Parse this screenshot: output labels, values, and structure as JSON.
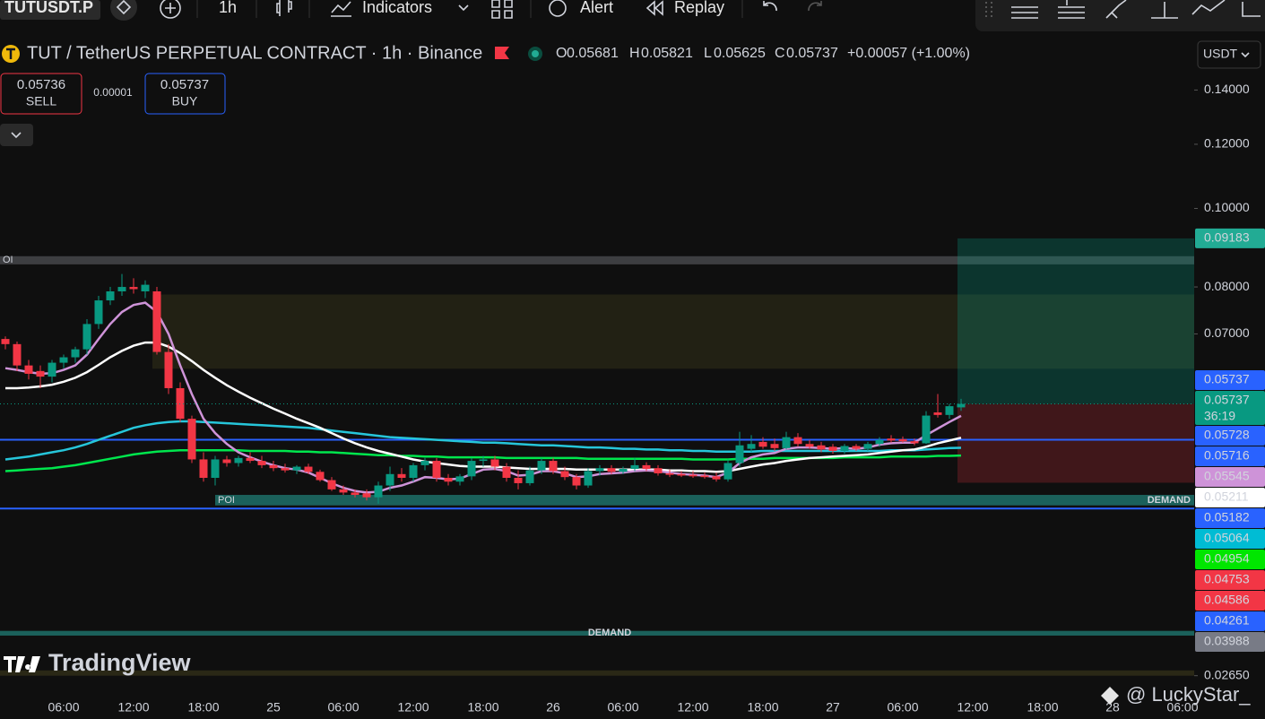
{
  "toolbar": {
    "symbol": "TUTUSDT.P",
    "interval": "1h",
    "indicators": "Indicators",
    "alert": "Alert",
    "replay": "Replay"
  },
  "header": {
    "title": "TUT / TetherUS PERPETUAL CONTRACT · 1h · Binance",
    "ohlc": [
      {
        "key": "O",
        "value": "0.05681"
      },
      {
        "key": "H",
        "value": "0.05821"
      },
      {
        "key": "L",
        "value": "0.05625"
      },
      {
        "key": "C",
        "value": "0.05737"
      }
    ],
    "change": "+0.00057 (+1.00%)"
  },
  "trade": {
    "sell_price": "0.05736",
    "sell": "SELL",
    "spread": "0.00001",
    "buy_price": "0.05737",
    "buy": "BUY"
  },
  "currency": "USDT",
  "watermark": "TradingView",
  "credit": "@ LuckyStar_",
  "chart_data": {
    "type": "candlestick",
    "log_scale": true,
    "grid": false,
    "ylim": [
      0.0251,
      0.1633
    ],
    "yticks": [
      {
        "value": 0.14,
        "label": "0.14000"
      },
      {
        "value": 0.12,
        "label": "0.12000"
      },
      {
        "value": 0.1,
        "label": "0.10000"
      },
      {
        "value": 0.08,
        "label": "0.08000"
      },
      {
        "value": 0.07,
        "label": "0.07000"
      },
      {
        "value": 0.0265,
        "label": "0.02650"
      }
    ],
    "up_color": "#089981",
    "down_color": "#f23645",
    "categories": [
      null,
      null,
      null,
      null,
      null,
      "06:00",
      null,
      null,
      null,
      null,
      null,
      "12:00",
      null,
      null,
      null,
      null,
      null,
      "18:00",
      null,
      null,
      null,
      null,
      null,
      "25",
      null,
      null,
      null,
      null,
      null,
      "06:00",
      null,
      null,
      null,
      null,
      null,
      "12:00",
      null,
      null,
      null,
      null,
      null,
      "18:00",
      null,
      null,
      null,
      null,
      null,
      "26",
      null,
      null,
      null,
      null,
      null,
      "06:00",
      null,
      null,
      null,
      null,
      null,
      "12:00",
      null,
      null,
      null,
      null,
      null,
      "18:00",
      null,
      null,
      null,
      null,
      null,
      "27",
      null,
      null,
      null,
      null,
      null,
      "06:00",
      null,
      null,
      null,
      null,
      null,
      "12:00",
      null,
      null,
      null,
      null,
      null,
      "18:00",
      null,
      null,
      null,
      null,
      null,
      "28",
      null,
      null,
      null,
      null,
      null,
      "06:00"
    ],
    "open": [
      0.069,
      0.068,
      0.064,
      0.063,
      0.062,
      0.0645,
      0.0655,
      0.067,
      0.072,
      0.077,
      0.079,
      0.08,
      0.079,
      0.079,
      0.0665,
      0.06,
      0.055,
      0.049,
      0.0465,
      0.049,
      0.0485,
      0.0492,
      0.0488,
      0.0482,
      0.0478,
      0.0475,
      0.048,
      0.0473,
      0.0462,
      0.045,
      0.0446,
      0.0445,
      0.044,
      0.0455,
      0.047,
      0.0465,
      0.0482,
      0.0488,
      0.0465,
      0.046,
      0.0467,
      0.0488,
      0.049,
      0.048,
      0.0465,
      0.0458,
      0.0475,
      0.0488,
      0.0474,
      0.0466,
      0.0455,
      0.0474,
      0.0478,
      0.0473,
      0.0477,
      0.0482,
      0.0478,
      0.0471,
      0.047,
      0.0469,
      0.0468,
      0.0467,
      0.0463,
      0.0485,
      0.0505,
      0.0515,
      0.0512,
      0.0506,
      0.0522,
      0.0512,
      0.051,
      0.0508,
      0.0502,
      0.0509,
      0.0505,
      0.0512,
      0.052,
      0.0519,
      0.0516,
      0.0513,
      0.056,
      0.0556,
      0.05681,
      null,
      null,
      null,
      null,
      null,
      null,
      null,
      null,
      null,
      null,
      null,
      null,
      null,
      null,
      null,
      null,
      null,
      null,
      null
    ],
    "high": [
      0.0695,
      0.0685,
      0.065,
      0.064,
      0.065,
      0.066,
      0.0675,
      0.073,
      0.078,
      0.08,
      0.083,
      0.082,
      0.0815,
      0.08,
      0.068,
      0.061,
      0.0555,
      0.05,
      0.0495,
      0.0495,
      0.0495,
      0.05,
      0.0495,
      0.0488,
      0.0484,
      0.0482,
      0.0484,
      0.0476,
      0.0466,
      0.0455,
      0.045,
      0.045,
      0.046,
      0.048,
      0.0478,
      0.0485,
      0.0492,
      0.0492,
      0.047,
      0.047,
      0.0492,
      0.0495,
      0.0495,
      0.0485,
      0.0475,
      0.048,
      0.0492,
      0.0492,
      0.048,
      0.047,
      0.0478,
      0.0482,
      0.0482,
      0.048,
      0.0492,
      0.0486,
      0.0482,
      0.0476,
      0.0474,
      0.0474,
      0.0472,
      0.0472,
      0.049,
      0.053,
      0.0525,
      0.0522,
      0.052,
      0.053,
      0.0528,
      0.0518,
      0.0515,
      0.0512,
      0.0512,
      0.0512,
      0.0515,
      0.0522,
      0.0525,
      0.0523,
      0.052,
      0.0562,
      0.059,
      0.0574,
      0.05821,
      null,
      null,
      null,
      null,
      null,
      null,
      null,
      null,
      null,
      null,
      null,
      null,
      null,
      null,
      null,
      null,
      null,
      null,
      null
    ],
    "low": [
      0.067,
      0.063,
      0.0615,
      0.06,
      0.061,
      0.0635,
      0.0645,
      0.066,
      0.071,
      0.076,
      0.078,
      0.0785,
      0.0775,
      0.066,
      0.059,
      0.0545,
      0.0485,
      0.046,
      0.0455,
      0.048,
      0.048,
      0.0485,
      0.0478,
      0.0474,
      0.0472,
      0.047,
      0.047,
      0.046,
      0.0448,
      0.0443,
      0.044,
      0.0436,
      0.0432,
      0.0448,
      0.046,
      0.046,
      0.0475,
      0.046,
      0.0455,
      0.0455,
      0.0462,
      0.048,
      0.0475,
      0.046,
      0.045,
      0.0455,
      0.047,
      0.047,
      0.0462,
      0.045,
      0.0452,
      0.0468,
      0.047,
      0.047,
      0.0474,
      0.0474,
      0.0468,
      0.0466,
      0.0466,
      0.0465,
      0.0464,
      0.046,
      0.046,
      0.048,
      0.05,
      0.0505,
      0.0502,
      0.0504,
      0.0508,
      0.0505,
      0.05,
      0.0498,
      0.0498,
      0.0502,
      0.0502,
      0.0508,
      0.0514,
      0.0514,
      0.051,
      0.0512,
      0.0552,
      0.055,
      0.05625,
      null,
      null,
      null,
      null,
      null,
      null,
      null,
      null,
      null,
      null,
      null,
      null,
      null,
      null,
      null,
      null,
      null,
      null,
      null
    ],
    "close": [
      0.068,
      0.064,
      0.0625,
      0.062,
      0.0645,
      0.0655,
      0.067,
      0.072,
      0.077,
      0.079,
      0.08,
      0.0795,
      0.0805,
      0.0665,
      0.06,
      0.055,
      0.049,
      0.0465,
      0.049,
      0.0485,
      0.0492,
      0.0488,
      0.0482,
      0.0478,
      0.0475,
      0.048,
      0.0473,
      0.0462,
      0.045,
      0.0446,
      0.0443,
      0.044,
      0.0455,
      0.047,
      0.0465,
      0.0482,
      0.0488,
      0.0465,
      0.046,
      0.0467,
      0.0488,
      0.049,
      0.048,
      0.0465,
      0.0458,
      0.0475,
      0.0488,
      0.0474,
      0.0466,
      0.0455,
      0.0474,
      0.0478,
      0.0473,
      0.0477,
      0.0482,
      0.0477,
      0.0471,
      0.0469,
      0.0468,
      0.0467,
      0.0466,
      0.0463,
      0.0485,
      0.051,
      0.0512,
      0.0508,
      0.0506,
      0.0522,
      0.0512,
      0.0508,
      0.0504,
      0.0502,
      0.0509,
      0.0505,
      0.0512,
      0.0518,
      0.0517,
      0.0516,
      0.0513,
      0.0555,
      0.0556,
      0.057,
      0.05737,
      null,
      null,
      null,
      null,
      null,
      null,
      null,
      null,
      null,
      null,
      null,
      null,
      null,
      null,
      null,
      null,
      null,
      null,
      null
    ],
    "series": [
      {
        "color": "#00e64d",
        "values": [
          0.0474,
          0.0475,
          0.0476,
          0.0477,
          0.0478,
          0.048,
          0.0482,
          0.0485,
          0.0488,
          0.0491,
          0.0494,
          0.0497,
          0.0499,
          0.0501,
          0.0502,
          0.0503,
          0.0503,
          0.0503,
          0.0503,
          0.0503,
          0.0503,
          0.0502,
          0.0502,
          0.0502,
          0.0502,
          0.0501,
          0.0501,
          0.05,
          0.05,
          0.0499,
          0.0498,
          0.0497,
          0.0496,
          0.0496,
          0.0495,
          0.0495,
          0.0494,
          0.0494,
          0.0493,
          0.0493,
          0.0493,
          0.0493,
          0.0493,
          0.0492,
          0.0492,
          0.0492,
          0.0492,
          0.0492,
          0.0492,
          0.0492,
          0.0491,
          0.0491,
          0.0491,
          0.0491,
          0.0491,
          0.0491,
          0.0491,
          0.0491,
          0.0491,
          0.049,
          0.049,
          0.049,
          0.049,
          0.0491,
          0.0491,
          0.0491,
          0.0492,
          0.0492,
          0.0492,
          0.0492,
          0.0492,
          0.0492,
          0.0493,
          0.0493,
          0.0493,
          0.0493,
          0.0494,
          0.0494,
          0.0494,
          0.0494,
          0.0495,
          0.0495,
          0.04954,
          null,
          null,
          null,
          null,
          null,
          null,
          null,
          null,
          null,
          null,
          null,
          null,
          null,
          null,
          null,
          null,
          null,
          null,
          null
        ]
      },
      {
        "color": "#26c6da",
        "values": [
          0.049,
          0.0492,
          0.0494,
          0.0497,
          0.05,
          0.0503,
          0.0507,
          0.0512,
          0.0518,
          0.0524,
          0.053,
          0.0536,
          0.054,
          0.0543,
          0.0545,
          0.0546,
          0.0546,
          0.0545,
          0.0544,
          0.0543,
          0.0542,
          0.0541,
          0.054,
          0.0539,
          0.0538,
          0.0537,
          0.0536,
          0.0534,
          0.0532,
          0.053,
          0.0528,
          0.0526,
          0.0524,
          0.0522,
          0.0521,
          0.052,
          0.0519,
          0.0518,
          0.0517,
          0.0516,
          0.0515,
          0.0514,
          0.0514,
          0.0513,
          0.0512,
          0.0511,
          0.051,
          0.051,
          0.0509,
          0.0508,
          0.0507,
          0.0507,
          0.0506,
          0.0505,
          0.0505,
          0.0504,
          0.0504,
          0.0503,
          0.0503,
          0.0502,
          0.0502,
          0.0501,
          0.0501,
          0.0501,
          0.0501,
          0.0502,
          0.0502,
          0.0502,
          0.0502,
          0.0502,
          0.0502,
          0.0502,
          0.0502,
          0.0502,
          0.0502,
          0.0502,
          0.0503,
          0.0503,
          0.0503,
          0.0504,
          0.0505,
          0.0506,
          0.05064,
          null,
          null,
          null,
          null,
          null,
          null,
          null,
          null,
          null,
          null,
          null,
          null,
          null,
          null,
          null,
          null,
          null,
          null,
          null
        ]
      },
      {
        "color": "#ffffff",
        "values": [
          0.06,
          0.06,
          0.0601,
          0.0603,
          0.0606,
          0.0611,
          0.0618,
          0.0628,
          0.0641,
          0.0655,
          0.0667,
          0.0677,
          0.0683,
          0.0683,
          0.0675,
          0.0663,
          0.0648,
          0.0632,
          0.0618,
          0.0605,
          0.0594,
          0.0584,
          0.0575,
          0.0566,
          0.0558,
          0.055,
          0.0543,
          0.0536,
          0.0528,
          0.052,
          0.0513,
          0.0507,
          0.0502,
          0.0498,
          0.0494,
          0.049,
          0.0487,
          0.0485,
          0.0483,
          0.0481,
          0.048,
          0.048,
          0.048,
          0.0479,
          0.0478,
          0.0477,
          0.0477,
          0.0477,
          0.0477,
          0.0476,
          0.0476,
          0.0476,
          0.0476,
          0.0476,
          0.0476,
          0.0476,
          0.0476,
          0.0475,
          0.0475,
          0.0474,
          0.0474,
          0.0473,
          0.0474,
          0.0477,
          0.048,
          0.0483,
          0.0485,
          0.0488,
          0.049,
          0.0492,
          0.0493,
          0.0494,
          0.0495,
          0.0496,
          0.0497,
          0.0499,
          0.0501,
          0.0503,
          0.0504,
          0.0508,
          0.0513,
          0.0517,
          0.05211,
          null,
          null,
          null,
          null,
          null,
          null,
          null,
          null,
          null,
          null,
          null,
          null,
          null,
          null,
          null,
          null,
          null,
          null,
          null
        ]
      },
      {
        "color": "#ce93d8",
        "values": [
          0.0635,
          0.0632,
          0.0628,
          0.0625,
          0.0626,
          0.0632,
          0.064,
          0.066,
          0.069,
          0.072,
          0.0745,
          0.076,
          0.0765,
          0.0745,
          0.07,
          0.064,
          0.059,
          0.055,
          0.0528,
          0.0512,
          0.05,
          0.0493,
          0.0487,
          0.0482,
          0.0478,
          0.0476,
          0.0472,
          0.0465,
          0.0458,
          0.0452,
          0.0448,
          0.0446,
          0.0447,
          0.0452,
          0.0455,
          0.046,
          0.0466,
          0.0465,
          0.0463,
          0.0464,
          0.047,
          0.0476,
          0.0477,
          0.0474,
          0.0468,
          0.0469,
          0.0474,
          0.0474,
          0.0471,
          0.0466,
          0.0467,
          0.047,
          0.0471,
          0.0472,
          0.0474,
          0.0475,
          0.0474,
          0.0472,
          0.047,
          0.0469,
          0.0468,
          0.0466,
          0.0472,
          0.0485,
          0.0493,
          0.0497,
          0.0499,
          0.0505,
          0.0507,
          0.0507,
          0.0506,
          0.0505,
          0.0506,
          0.0505,
          0.0507,
          0.0511,
          0.0513,
          0.0514,
          0.0514,
          0.0525,
          0.0535,
          0.0545,
          0.05545,
          null,
          null,
          null,
          null,
          null,
          null,
          null,
          null,
          null,
          null,
          null,
          null,
          null,
          null,
          null,
          null,
          null,
          null,
          null
        ]
      }
    ],
    "zones": [
      {
        "top": 0.0873,
        "bottom": 0.0853,
        "color": "#9598a1",
        "label_left": "OI"
      },
      {
        "top": 0.0783,
        "bottom": 0.0634,
        "color": "#6b6428"
      },
      {
        "top": 0.0443,
        "bottom": 0.043,
        "color": "#26a69a",
        "label_left": "POI",
        "label_right": "DEMAND"
      },
      {
        "top": 0.0301,
        "bottom": 0.0297,
        "color": "#26a69a",
        "label_center": "DEMAND"
      },
      {
        "top": 0.0269,
        "bottom": 0.0265,
        "color": "#6b6428"
      },
      {
        "top": 0.09183,
        "bottom": 0.05737,
        "color": "#089981"
      },
      {
        "top": 0.05737,
        "bottom": 0.04586,
        "color": "#f23645"
      }
    ],
    "lines": [
      {
        "value": 0.05182,
        "color": "#2962ff"
      },
      {
        "value": 0.04261,
        "color": "#2962ff"
      }
    ],
    "price_labels": [
      {
        "value": 0.09183,
        "color": "#22ab94"
      },
      {
        "value": 0.05737,
        "color": "#2962ff"
      },
      {
        "value": 0.05737,
        "color": "#089981",
        "countdown": "36:19"
      },
      {
        "value": 0.05728,
        "color": "#2962ff"
      },
      {
        "value": 0.05716,
        "color": "#2962ff"
      },
      {
        "value": 0.05545,
        "color": "#ce93d8",
        "text_color": "#131722"
      },
      {
        "value": 0.05211,
        "color": "#ffffff",
        "text_color": "#131722"
      },
      {
        "value": 0.05182,
        "color": "#2962ff"
      },
      {
        "value": 0.05064,
        "color": "#00bcd4",
        "text_color": "#131722"
      },
      {
        "value": 0.04954,
        "color": "#00e600",
        "text_color": "#131722"
      },
      {
        "value": 0.04753,
        "color": "#f23645"
      },
      {
        "value": 0.04586,
        "color": "#f23645"
      },
      {
        "value": 0.04261,
        "color": "#2962ff"
      },
      {
        "value": 0.03988,
        "color": "#787b86"
      }
    ]
  }
}
